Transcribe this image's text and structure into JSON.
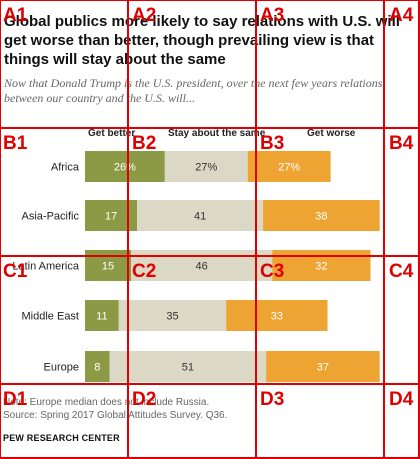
{
  "header": {
    "title": "Global publics more likely to say relations with U.S. will get worse than better, though prevailing view is that things will stay about the same",
    "subtitle": "Now that Donald Trump is the U.S. president, over the next few years relations between our country and the U.S. will..."
  },
  "chart_data": {
    "type": "bar",
    "stacked": true,
    "orientation": "horizontal",
    "categories": [
      "Africa",
      "Asia-Pacific",
      "Latin America",
      "Middle East",
      "Europe"
    ],
    "series": [
      {
        "name": "Get better",
        "values": [
          26,
          17,
          15,
          11,
          8
        ],
        "labels": [
          "26%",
          "17",
          "15",
          "11",
          "8"
        ],
        "color": "#8c9a46"
      },
      {
        "name": "Stay about the same",
        "values": [
          27,
          41,
          46,
          35,
          51
        ],
        "labels": [
          "27%",
          "41",
          "46",
          "35",
          "51"
        ],
        "color": "#dcd8c6"
      },
      {
        "name": "Get worse",
        "values": [
          27,
          38,
          32,
          33,
          37
        ],
        "labels": [
          "27%",
          "38",
          "32",
          "33",
          "37"
        ],
        "color": "#eda433"
      }
    ],
    "grid": false,
    "legend": "top"
  },
  "footer": {
    "note": "Note: Europe median does not include Russia.",
    "source": "Source: Spring 2017 Global Attitudes Survey. Q36.",
    "brand": "PEW RESEARCH CENTER"
  },
  "grid_overlay": {
    "color": "#e00000",
    "labels": [
      "A1",
      "A2",
      "A3",
      "A4",
      "B1",
      "B2",
      "B3",
      "B4",
      "C1",
      "C2",
      "C3",
      "C4",
      "D1",
      "D2",
      "D3",
      "D4"
    ]
  }
}
